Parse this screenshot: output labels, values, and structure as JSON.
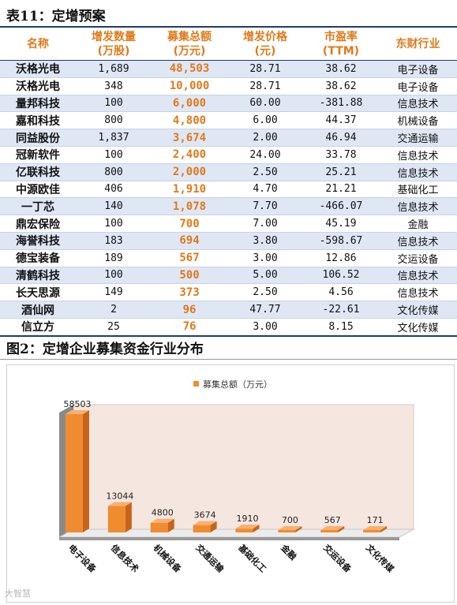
{
  "table_title": "表11：定增预案",
  "table": {
    "headers": [
      [
        "名称",
        ""
      ],
      [
        "增发数量",
        "(万股)"
      ],
      [
        "募集总额",
        "(万元)"
      ],
      [
        "增发价格",
        "(元)"
      ],
      [
        "市盈率",
        "(TTM)"
      ],
      [
        "东财行业",
        ""
      ]
    ],
    "rows": [
      [
        "沃格光电",
        "1,689",
        "48,503",
        "28.71",
        "38.62",
        "电子设备"
      ],
      [
        "沃格光电",
        "348",
        "10,000",
        "28.71",
        "38.62",
        "电子设备"
      ],
      [
        "量邦科技",
        "100",
        "6,000",
        "60.00",
        "-381.88",
        "信息技术"
      ],
      [
        "嘉和科技",
        "800",
        "4,800",
        "6.00",
        "44.37",
        "机械设备"
      ],
      [
        "同益股份",
        "1,837",
        "3,674",
        "2.00",
        "46.94",
        "交通运输"
      ],
      [
        "冠新软件",
        "100",
        "2,400",
        "24.00",
        "33.78",
        "信息技术"
      ],
      [
        "亿联科技",
        "800",
        "2,000",
        "2.50",
        "25.21",
        "信息技术"
      ],
      [
        "中源欧佳",
        "406",
        "1,910",
        "4.70",
        "21.21",
        "基础化工"
      ],
      [
        "一丁芯",
        "140",
        "1,078",
        "7.70",
        "-466.07",
        "信息技术"
      ],
      [
        "鼎宏保险",
        "100",
        "700",
        "7.00",
        "45.19",
        "金融"
      ],
      [
        "海誉科技",
        "183",
        "694",
        "3.80",
        "-598.67",
        "信息技术"
      ],
      [
        "德宝装备",
        "189",
        "567",
        "3.00",
        "12.86",
        "交运设备"
      ],
      [
        "清鹤科技",
        "100",
        "500",
        "5.00",
        "106.52",
        "信息技术"
      ],
      [
        "长天思源",
        "149",
        "373",
        "2.50",
        "4.56",
        "信息技术"
      ],
      [
        "酒仙网",
        "2",
        "96",
        "47.77",
        "-22.61",
        "文化传媒"
      ],
      [
        "信立方",
        "25",
        "76",
        "3.00",
        "8.15",
        "文化传媒"
      ]
    ]
  },
  "chart_heading": "图2：定增企业募集资金行业分布",
  "chart_data": {
    "type": "bar",
    "categories": [
      "电子设备",
      "信息技术",
      "机械设备",
      "交通运输",
      "基础化工",
      "金融",
      "交运设备",
      "文化传媒"
    ],
    "series": [
      {
        "name": "募集总额（万元）",
        "values": [
          58503,
          13044,
          4800,
          3674,
          1910,
          700,
          567,
          171
        ]
      }
    ],
    "data_labels": [
      "58503",
      "13044",
      "4800",
      "3674",
      "1910",
      "700",
      "567",
      "171"
    ],
    "legend_position": "top-center",
    "style": "3d",
    "grid": false,
    "colors": {
      "bar": "#f08c30",
      "bar_side": "#c8641a",
      "bar_top": "#f8b070",
      "wall": "#f6e6e0",
      "floor": "#ececec"
    }
  },
  "watermark": "大智慧"
}
